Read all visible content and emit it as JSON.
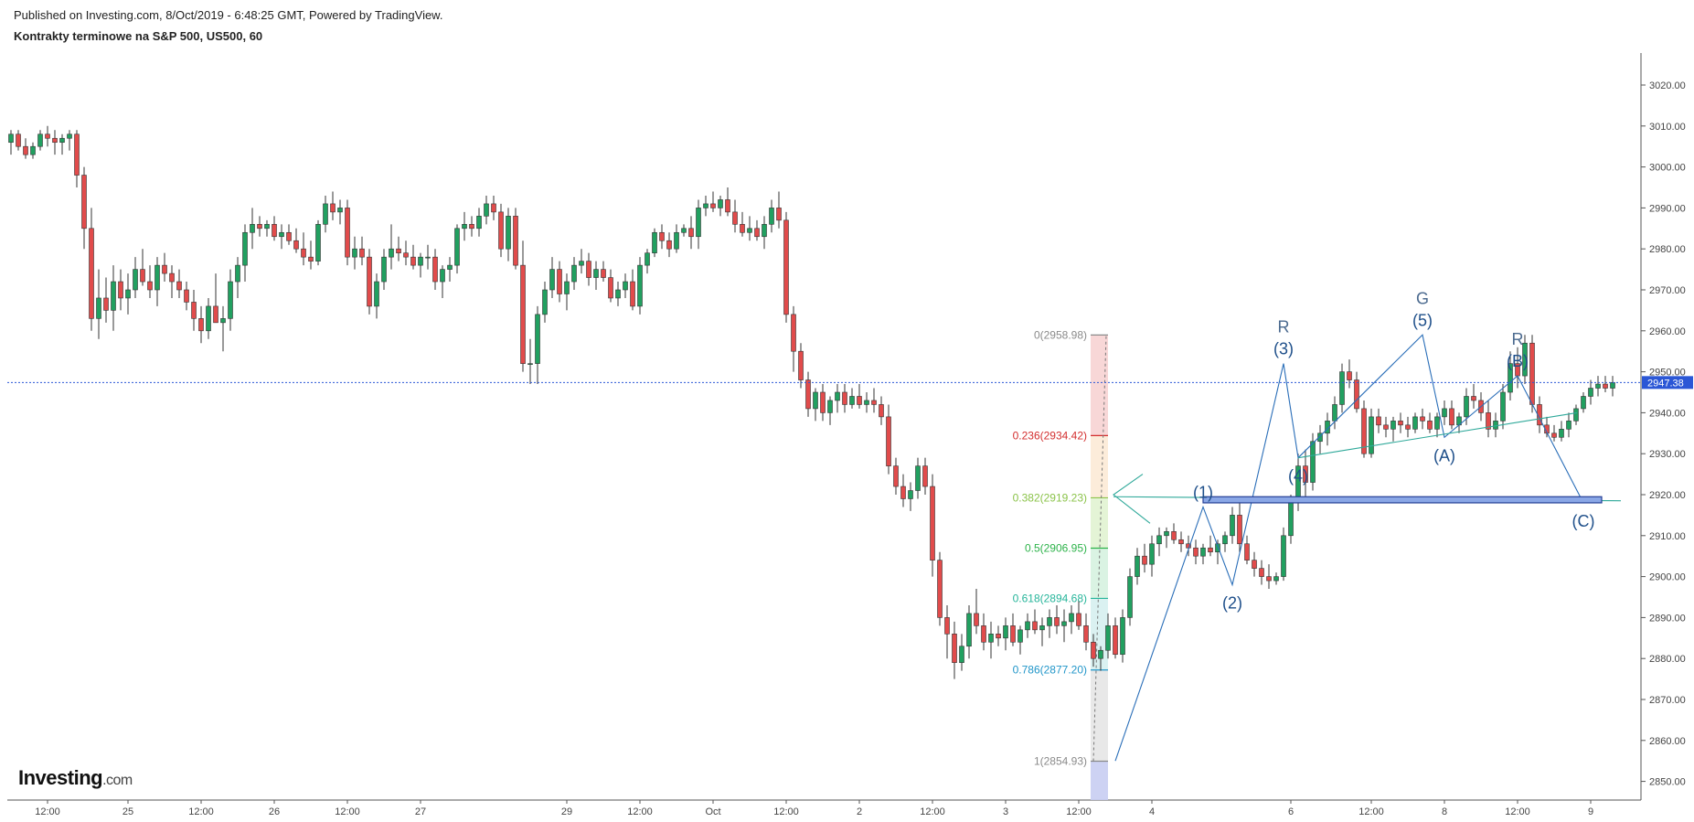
{
  "header": {
    "published": "Published on Investing.com, 8/Oct/2019 - 6:48:25 GMT, Powered by TradingView.",
    "title": "Kontrakty terminowe na S&P 500, US500, 60"
  },
  "logo": {
    "main": "Investing",
    "suffix": ".com"
  },
  "colors": {
    "up": "#21a060",
    "down": "#e14b4b",
    "wave": "#2a6eb8",
    "wave_label": "#1e4f8a",
    "price_line": "#2b57d6",
    "axis_text": "#444444"
  },
  "chart_data": {
    "type": "candlestick",
    "title": "Kontrakty terminowe na S&P 500, US500, 60",
    "ylim": [
      2845,
      3025
    ],
    "y_ticks": [
      3020,
      3010,
      3000,
      2990,
      2980,
      2970,
      2960,
      2950,
      2940,
      2930,
      2920,
      2910,
      2900,
      2890,
      2880,
      2870,
      2860,
      2850
    ],
    "x_ticks": [
      {
        "i": 5,
        "label": "12:00"
      },
      {
        "i": 16,
        "label": "25"
      },
      {
        "i": 26,
        "label": "12:00"
      },
      {
        "i": 36,
        "label": "26"
      },
      {
        "i": 46,
        "label": "12:00"
      },
      {
        "i": 56,
        "label": "27"
      },
      {
        "i": 76,
        "label": "29"
      },
      {
        "i": 86,
        "label": "12:00"
      },
      {
        "i": 96,
        "label": "Oct"
      },
      {
        "i": 106,
        "label": "12:00"
      },
      {
        "i": 116,
        "label": "2"
      },
      {
        "i": 126,
        "label": "12:00"
      },
      {
        "i": 136,
        "label": "3"
      },
      {
        "i": 146,
        "label": "12:00"
      },
      {
        "i": 156,
        "label": "4"
      },
      {
        "i": 175,
        "label": "6"
      },
      {
        "i": 186,
        "label": "12:00"
      },
      {
        "i": 196,
        "label": "8"
      },
      {
        "i": 206,
        "label": "12:00"
      },
      {
        "i": 216,
        "label": "9"
      }
    ],
    "last_price": 2947.38,
    "candles": [
      [
        3006,
        3009,
        3003,
        3008
      ],
      [
        3008,
        3009,
        3004,
        3005
      ],
      [
        3005,
        3007,
        3002,
        3003
      ],
      [
        3003,
        3006,
        3002,
        3005
      ],
      [
        3005,
        3009,
        3004,
        3008
      ],
      [
        3008,
        3010,
        3005,
        3007
      ],
      [
        3007,
        3009,
        3003,
        3006
      ],
      [
        3006,
        3008,
        3003,
        3007
      ],
      [
        3007,
        3009,
        3004,
        3008
      ],
      [
        3008,
        3009,
        2995,
        2998
      ],
      [
        2998,
        3000,
        2980,
        2985
      ],
      [
        2985,
        2990,
        2960,
        2963
      ],
      [
        2963,
        2975,
        2958,
        2968
      ],
      [
        2968,
        2973,
        2962,
        2965
      ],
      [
        2965,
        2976,
        2960,
        2972
      ],
      [
        2972,
        2975,
        2965,
        2968
      ],
      [
        2968,
        2974,
        2964,
        2970
      ],
      [
        2970,
        2978,
        2968,
        2975
      ],
      [
        2975,
        2980,
        2971,
        2972
      ],
      [
        2972,
        2976,
        2968,
        2970
      ],
      [
        2970,
        2978,
        2966,
        2976
      ],
      [
        2976,
        2979,
        2972,
        2974
      ],
      [
        2974,
        2976,
        2968,
        2972
      ],
      [
        2972,
        2975,
        2968,
        2970
      ],
      [
        2970,
        2972,
        2965,
        2967
      ],
      [
        2967,
        2970,
        2960,
        2963
      ],
      [
        2963,
        2966,
        2957,
        2960
      ],
      [
        2960,
        2968,
        2958,
        2966
      ],
      [
        2966,
        2974,
        2962,
        2962
      ],
      [
        2962,
        2966,
        2955,
        2963
      ],
      [
        2963,
        2975,
        2960,
        2972
      ],
      [
        2972,
        2978,
        2968,
        2976
      ],
      [
        2976,
        2986,
        2972,
        2984
      ],
      [
        2984,
        2990,
        2980,
        2986
      ],
      [
        2986,
        2988,
        2983,
        2985
      ],
      [
        2985,
        2987,
        2983,
        2986
      ],
      [
        2986,
        2988,
        2982,
        2983
      ],
      [
        2983,
        2986,
        2980,
        2984
      ],
      [
        2984,
        2986,
        2981,
        2982
      ],
      [
        2982,
        2985,
        2979,
        2980
      ],
      [
        2980,
        2984,
        2976,
        2978
      ],
      [
        2978,
        2982,
        2975,
        2977
      ],
      [
        2977,
        2987,
        2976,
        2986
      ],
      [
        2986,
        2993,
        2984,
        2991
      ],
      [
        2991,
        2994,
        2987,
        2989
      ],
      [
        2989,
        2992,
        2986,
        2990
      ],
      [
        2990,
        2992,
        2976,
        2978
      ],
      [
        2978,
        2983,
        2975,
        2980
      ],
      [
        2980,
        2983,
        2976,
        2978
      ],
      [
        2978,
        2980,
        2964,
        2966
      ],
      [
        2966,
        2974,
        2963,
        2972
      ],
      [
        2972,
        2980,
        2970,
        2978
      ],
      [
        2978,
        2986,
        2975,
        2980
      ],
      [
        2980,
        2983,
        2977,
        2979
      ],
      [
        2979,
        2982,
        2976,
        2978
      ],
      [
        2978,
        2981,
        2975,
        2976
      ],
      [
        2976,
        2979,
        2973,
        2978
      ],
      [
        2978,
        2981,
        2975,
        2978
      ],
      [
        2978,
        2980,
        2970,
        2972
      ],
      [
        2972,
        2976,
        2968,
        2975
      ],
      [
        2975,
        2978,
        2972,
        2976
      ],
      [
        2976,
        2986,
        2974,
        2985
      ],
      [
        2985,
        2989,
        2982,
        2986
      ],
      [
        2986,
        2988,
        2983,
        2985
      ],
      [
        2985,
        2990,
        2983,
        2988
      ],
      [
        2988,
        2993,
        2986,
        2991
      ],
      [
        2991,
        2993,
        2987,
        2989
      ],
      [
        2989,
        2991,
        2978,
        2980
      ],
      [
        2980,
        2990,
        2977,
        2988
      ],
      [
        2988,
        2990,
        2975,
        2976
      ],
      [
        2976,
        2982,
        2950,
        2952
      ],
      [
        2952,
        2958,
        2947,
        2952
      ],
      [
        2952,
        2966,
        2947,
        2964
      ],
      [
        2964,
        2972,
        2962,
        2970
      ],
      [
        2970,
        2978,
        2968,
        2975
      ],
      [
        2975,
        2977,
        2967,
        2969
      ],
      [
        2969,
        2974,
        2965,
        2972
      ],
      [
        2972,
        2978,
        2970,
        2976
      ],
      [
        2976,
        2980,
        2974,
        2977
      ],
      [
        2977,
        2979,
        2971,
        2973
      ],
      [
        2973,
        2977,
        2970,
        2975
      ],
      [
        2975,
        2977,
        2972,
        2973
      ],
      [
        2973,
        2975,
        2967,
        2968
      ],
      [
        2968,
        2972,
        2966,
        2970
      ],
      [
        2970,
        2974,
        2968,
        2972
      ],
      [
        2972,
        2975,
        2965,
        2966
      ],
      [
        2966,
        2978,
        2964,
        2976
      ],
      [
        2976,
        2980,
        2974,
        2979
      ],
      [
        2979,
        2985,
        2978,
        2984
      ],
      [
        2984,
        2986,
        2980,
        2982
      ],
      [
        2982,
        2984,
        2978,
        2980
      ],
      [
        2980,
        2986,
        2979,
        2984
      ],
      [
        2984,
        2986,
        2983,
        2985
      ],
      [
        2985,
        2988,
        2980,
        2983
      ],
      [
        2983,
        2992,
        2980,
        2990
      ],
      [
        2990,
        2993,
        2988,
        2991
      ],
      [
        2991,
        2994,
        2989,
        2990
      ],
      [
        2990,
        2993,
        2988,
        2992
      ],
      [
        2992,
        2995,
        2988,
        2989
      ],
      [
        2989,
        2992,
        2984,
        2986
      ],
      [
        2986,
        2989,
        2983,
        2984
      ],
      [
        2984,
        2988,
        2982,
        2985
      ],
      [
        2985,
        2987,
        2982,
        2983
      ],
      [
        2983,
        2988,
        2980,
        2986
      ],
      [
        2986,
        2992,
        2984,
        2990
      ],
      [
        2990,
        2994,
        2985,
        2987
      ],
      [
        2987,
        2989,
        2962,
        2964
      ],
      [
        2964,
        2966,
        2950,
        2955
      ],
      [
        2955,
        2957,
        2946,
        2948
      ],
      [
        2948,
        2950,
        2939,
        2941
      ],
      [
        2941,
        2946,
        2938,
        2945
      ],
      [
        2945,
        2947,
        2938,
        2940
      ],
      [
        2940,
        2944,
        2937,
        2943
      ],
      [
        2943,
        2947,
        2940,
        2945
      ],
      [
        2945,
        2947,
        2940,
        2942
      ],
      [
        2942,
        2946,
        2941,
        2944
      ],
      [
        2944,
        2947,
        2941,
        2942
      ],
      [
        2942,
        2945,
        2940,
        2943
      ],
      [
        2943,
        2946,
        2940,
        2942
      ],
      [
        2942,
        2944,
        2937,
        2939
      ],
      [
        2939,
        2942,
        2925,
        2927
      ],
      [
        2927,
        2929,
        2920,
        2922
      ],
      [
        2922,
        2925,
        2917,
        2919
      ],
      [
        2919,
        2923,
        2916,
        2921
      ],
      [
        2921,
        2929,
        2919,
        2927
      ],
      [
        2927,
        2929,
        2920,
        2922
      ],
      [
        2922,
        2925,
        2900,
        2904
      ],
      [
        2904,
        2906,
        2888,
        2890
      ],
      [
        2890,
        2893,
        2880,
        2886
      ],
      [
        2886,
        2889,
        2875,
        2879
      ],
      [
        2879,
        2886,
        2877,
        2883
      ],
      [
        2883,
        2893,
        2880,
        2891
      ],
      [
        2891,
        2897,
        2886,
        2888
      ],
      [
        2888,
        2891,
        2882,
        2884
      ],
      [
        2884,
        2889,
        2880,
        2886
      ],
      [
        2886,
        2888,
        2883,
        2885
      ],
      [
        2885,
        2890,
        2882,
        2888
      ],
      [
        2888,
        2891,
        2883,
        2884
      ],
      [
        2884,
        2888,
        2881,
        2887
      ],
      [
        2887,
        2891,
        2885,
        2889
      ],
      [
        2889,
        2892,
        2886,
        2887
      ],
      [
        2887,
        2890,
        2883,
        2888
      ],
      [
        2888,
        2892,
        2885,
        2890
      ],
      [
        2890,
        2893,
        2886,
        2888
      ],
      [
        2888,
        2892,
        2884,
        2889
      ],
      [
        2889,
        2893,
        2886,
        2891
      ],
      [
        2891,
        2894,
        2887,
        2888
      ],
      [
        2888,
        2891,
        2882,
        2884
      ],
      [
        2884,
        2886,
        2878,
        2880
      ],
      [
        2880,
        2883,
        2877,
        2882
      ],
      [
        2882,
        2891,
        2880,
        2888
      ],
      [
        2888,
        2890,
        2880,
        2881
      ],
      [
        2881,
        2892,
        2879,
        2890
      ],
      [
        2890,
        2902,
        2888,
        2900
      ],
      [
        2900,
        2907,
        2898,
        2905
      ],
      [
        2905,
        2908,
        2901,
        2903
      ],
      [
        2903,
        2910,
        2900,
        2908
      ],
      [
        2908,
        2912,
        2905,
        2910
      ],
      [
        2910,
        2912,
        2907,
        2911
      ],
      [
        2911,
        2913,
        2908,
        2909
      ],
      [
        2909,
        2911,
        2906,
        2908
      ],
      [
        2908,
        2910,
        2905,
        2907
      ],
      [
        2907,
        2909,
        2903,
        2905
      ],
      [
        2905,
        2908,
        2903,
        2907
      ],
      [
        2907,
        2910,
        2905,
        2906
      ],
      [
        2906,
        2909,
        2903,
        2908
      ],
      [
        2908,
        2911,
        2906,
        2910
      ],
      [
        2910,
        2917,
        2908,
        2915
      ],
      [
        2915,
        2918,
        2906,
        2908
      ],
      [
        2908,
        2910,
        2903,
        2904
      ],
      [
        2904,
        2906,
        2900,
        2902
      ],
      [
        2902,
        2904,
        2898,
        2900
      ],
      [
        2900,
        2903,
        2897,
        2899
      ],
      [
        2899,
        2901,
        2898,
        2900
      ],
      [
        2900,
        2912,
        2899,
        2910
      ],
      [
        2910,
        2920,
        2908,
        2918
      ],
      [
        2918,
        2930,
        2916,
        2927
      ],
      [
        2927,
        2931,
        2919,
        2923
      ],
      [
        2923,
        2935,
        2921,
        2933
      ],
      [
        2933,
        2937,
        2930,
        2935
      ],
      [
        2935,
        2940,
        2932,
        2938
      ],
      [
        2938,
        2944,
        2936,
        2942
      ],
      [
        2942,
        2952,
        2940,
        2950
      ],
      [
        2950,
        2953,
        2946,
        2948
      ],
      [
        2948,
        2950,
        2940,
        2941
      ],
      [
        2941,
        2943,
        2929,
        2930
      ],
      [
        2930,
        2941,
        2929,
        2939
      ],
      [
        2939,
        2941,
        2935,
        2937
      ],
      [
        2937,
        2939,
        2934,
        2936
      ],
      [
        2936,
        2939,
        2933,
        2938
      ],
      [
        2938,
        2940,
        2935,
        2937
      ],
      [
        2937,
        2939,
        2934,
        2936
      ],
      [
        2936,
        2940,
        2935,
        2939
      ],
      [
        2939,
        2941,
        2936,
        2938
      ],
      [
        2938,
        2940,
        2935,
        2936
      ],
      [
        2936,
        2940,
        2934,
        2939
      ],
      [
        2939,
        2943,
        2937,
        2941
      ],
      [
        2941,
        2943,
        2936,
        2937
      ],
      [
        2937,
        2940,
        2935,
        2939
      ],
      [
        2939,
        2946,
        2937,
        2944
      ],
      [
        2944,
        2947,
        2941,
        2943
      ],
      [
        2943,
        2945,
        2938,
        2940
      ],
      [
        2940,
        2943,
        2934,
        2936
      ],
      [
        2936,
        2940,
        2934,
        2938
      ],
      [
        2938,
        2947,
        2936,
        2945
      ],
      [
        2945,
        2955,
        2943,
        2952
      ],
      [
        2952,
        2956,
        2946,
        2949
      ],
      [
        2949,
        2959,
        2947,
        2957
      ],
      [
        2957,
        2959,
        2940,
        2942
      ],
      [
        2942,
        2944,
        2935,
        2937
      ],
      [
        2937,
        2939,
        2934,
        2935
      ],
      [
        2935,
        2937,
        2933,
        2934
      ],
      [
        2934,
        2938,
        2933,
        2936
      ],
      [
        2936,
        2940,
        2934,
        2938
      ],
      [
        2938,
        2942,
        2937,
        2941
      ],
      [
        2941,
        2945,
        2940,
        2944
      ],
      [
        2944,
        2948,
        2942,
        2946
      ],
      [
        2946,
        2949,
        2944,
        2947
      ],
      [
        2947,
        2949,
        2945,
        2946
      ],
      [
        2946,
        2949,
        2944,
        2947.38
      ]
    ],
    "fibonacci": {
      "levels": [
        {
          "label": "0(2958.98)",
          "value": 2958.98,
          "color": "#8a8a8a"
        },
        {
          "label": "0.236(2934.42)",
          "value": 2934.42,
          "color": "#d32f2f"
        },
        {
          "label": "0.382(2919.23)",
          "value": 2919.23,
          "color": "#8bc34a"
        },
        {
          "label": "0.5(2906.95)",
          "value": 2906.95,
          "color": "#2db34a"
        },
        {
          "label": "0.618(2894.68)",
          "value": 2894.68,
          "color": "#26b59a"
        },
        {
          "label": "0.786(2877.20)",
          "value": 2877.2,
          "color": "#2196c9"
        },
        {
          "label": "1(2854.93)",
          "value": 2854.93,
          "color": "#8a8a8a"
        }
      ],
      "bands": [
        "#f7d0d0",
        "#fbe9d3",
        "#dff2cf",
        "#d4f1de",
        "#d3efef",
        "#e4e4e4",
        "#c8cdf2"
      ]
    },
    "wave_points": [
      {
        "i": 151,
        "p": 2855,
        "label": ""
      },
      {
        "i": 163,
        "p": 2917,
        "label": "(1)"
      },
      {
        "i": 167,
        "p": 2898,
        "label": "(2)"
      },
      {
        "i": 174,
        "p": 2952,
        "label": "(3)",
        "mark": "R"
      },
      {
        "i": 176,
        "p": 2929,
        "label": "(4)"
      },
      {
        "i": 193,
        "p": 2959,
        "label": "(5)",
        "mark": "G"
      },
      {
        "i": 196,
        "p": 2934,
        "label": "(A)"
      },
      {
        "i": 206,
        "p": 2949,
        "label": "(B)",
        "mark": "R"
      },
      {
        "i": 215,
        "p": 2918,
        "label": "(C)"
      }
    ]
  }
}
